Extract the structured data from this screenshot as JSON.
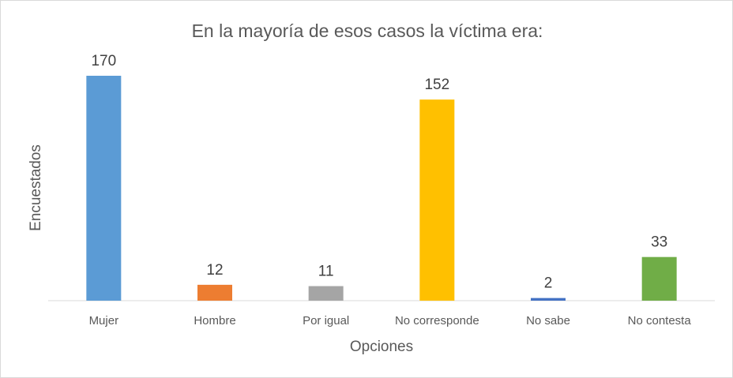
{
  "chart_data": {
    "type": "bar",
    "title": "En la mayoría de esos casos la víctima era:",
    "xlabel": "Opciones",
    "ylabel": "Encuestados",
    "categories": [
      "Mujer",
      "Hombre",
      "Por igual",
      "No corresponde",
      "No sabe",
      "No contesta"
    ],
    "values": [
      170,
      12,
      11,
      152,
      2,
      33
    ],
    "colors": [
      "#5b9bd5",
      "#ed7d31",
      "#a5a5a5",
      "#ffc000",
      "#4472c4",
      "#70ad47"
    ],
    "ylim": [
      0,
      170
    ],
    "grid": false,
    "legend": "none",
    "data_labels": true
  }
}
